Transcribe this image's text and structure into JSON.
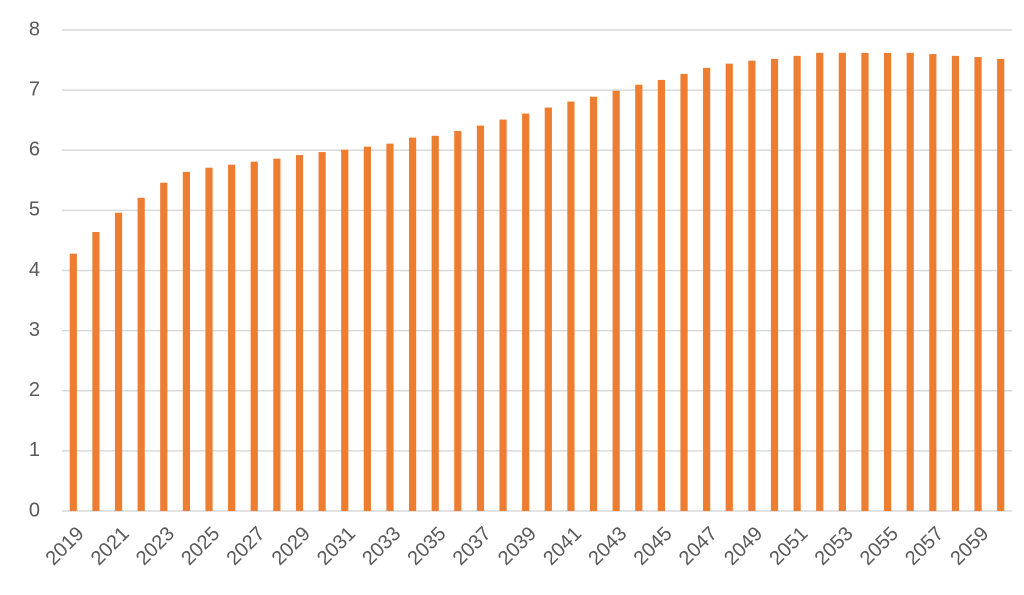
{
  "chart_data": {
    "type": "bar",
    "categories": [
      "2019",
      null,
      "2021",
      null,
      "2023",
      null,
      "2025",
      null,
      "2027",
      null,
      "2029",
      null,
      "2031",
      null,
      "2033",
      null,
      "2035",
      null,
      "2037",
      null,
      "2039",
      null,
      "2041",
      null,
      "2043",
      null,
      "2045",
      null,
      "2047",
      null,
      "2049",
      null,
      "2051",
      null,
      "2053",
      null,
      "2055",
      null,
      "2057",
      null,
      "2059",
      null
    ],
    "values": [
      4.28,
      4.64,
      4.96,
      5.21,
      5.46,
      5.64,
      5.71,
      5.76,
      5.81,
      5.86,
      5.92,
      5.97,
      6.01,
      6.06,
      6.11,
      6.21,
      6.24,
      6.32,
      6.41,
      6.51,
      6.61,
      6.71,
      6.81,
      6.89,
      6.99,
      7.09,
      7.17,
      7.27,
      7.37,
      7.44,
      7.49,
      7.52,
      7.57,
      7.62,
      7.62,
      7.62,
      7.62,
      7.62,
      7.6,
      7.57,
      7.55,
      7.52
    ],
    "color": "#ed7d31",
    "ylim": [
      0,
      8
    ],
    "yticks": [
      0,
      1,
      2,
      3,
      4,
      5,
      6,
      7,
      8
    ],
    "grid": true
  }
}
